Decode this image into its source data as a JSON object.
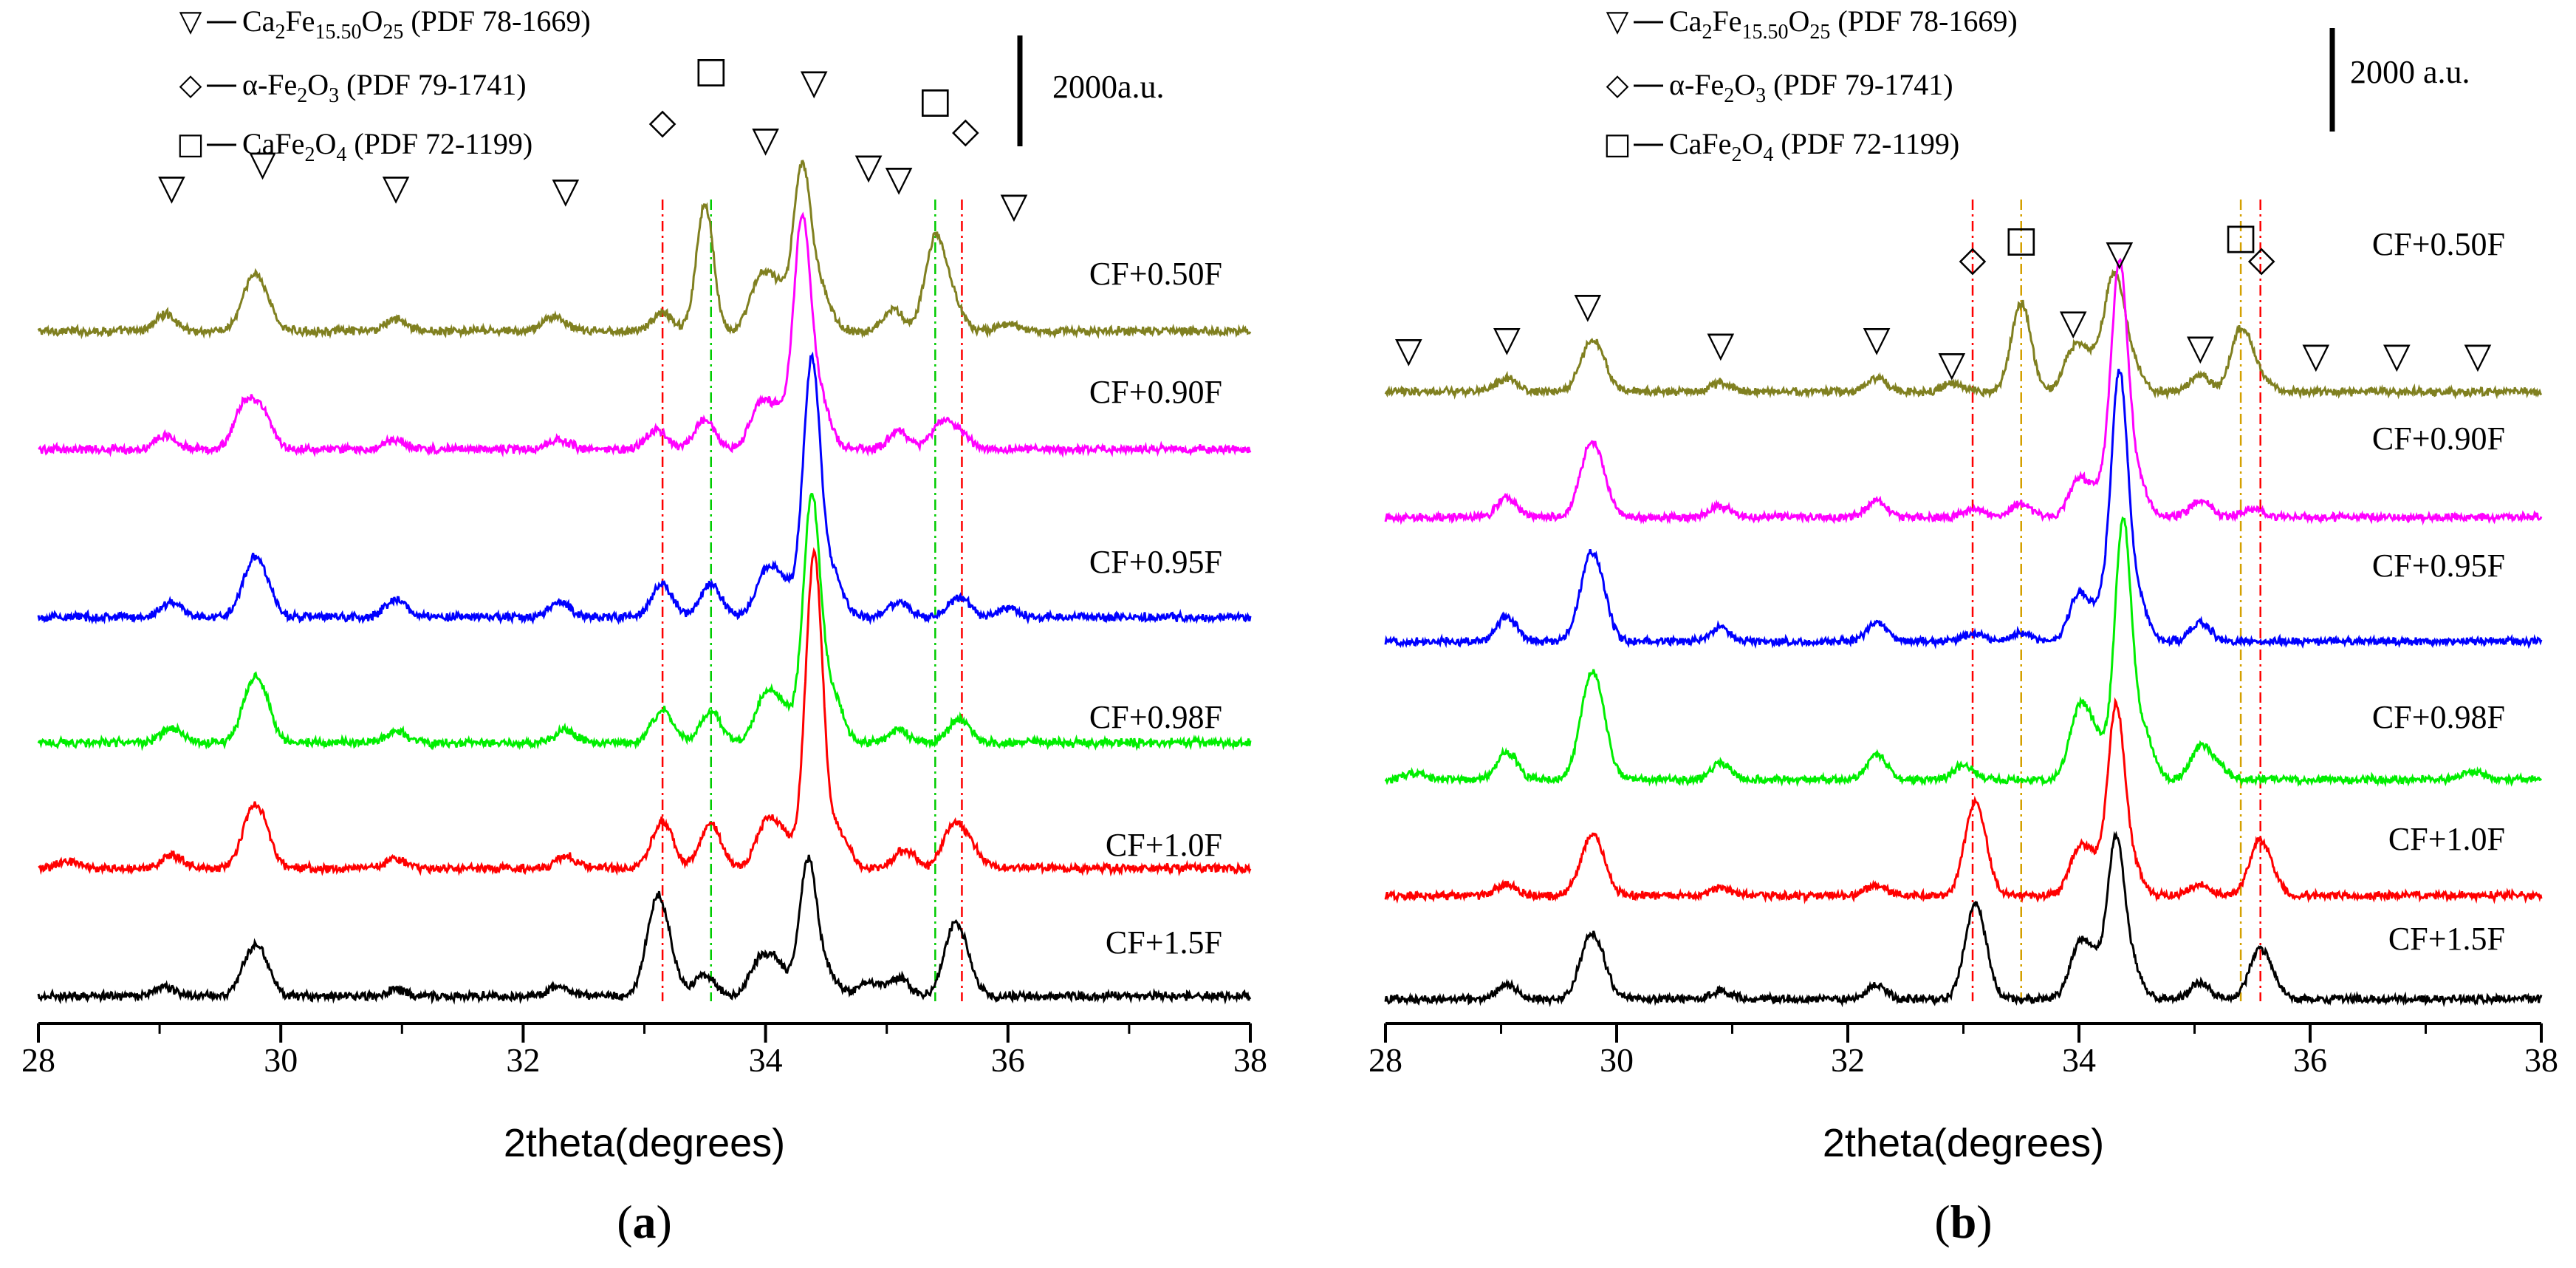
{
  "chart_data": [
    {
      "type": "line",
      "panel_label": "a",
      "xlabel": "2theta(degrees)",
      "ylabel": "",
      "xlim": [
        28,
        38
      ],
      "x_ticks": [
        28,
        30,
        32,
        34,
        36,
        38
      ],
      "scale_bar": "2000a.u.",
      "legend": [
        {
          "symbol": "▽",
          "base": "Ca",
          "parts": [
            [
              "Ca",
              ""
            ],
            [
              "2",
              "sub"
            ],
            [
              "Fe",
              ""
            ],
            [
              "15.50",
              "sub"
            ],
            [
              "O",
              ""
            ],
            [
              "25",
              "sub"
            ],
            [
              " (PDF 78-1669)",
              ""
            ]
          ]
        },
        {
          "symbol": "◇",
          "parts": [
            [
              "α-Fe",
              ""
            ],
            [
              "2",
              "sub"
            ],
            [
              "O",
              ""
            ],
            [
              "3",
              "sub"
            ],
            [
              " (PDF 79-1741)",
              ""
            ]
          ]
        },
        {
          "symbol": "□",
          "parts": [
            [
              "CaFe",
              ""
            ],
            [
              "2",
              "sub"
            ],
            [
              "O",
              ""
            ],
            [
              "4",
              "sub"
            ],
            [
              " (PDF 72-1199)",
              ""
            ]
          ]
        }
      ],
      "series": [
        {
          "name": "CF+0.50F",
          "color": "#808020",
          "peaks": [
            [
              29.05,
              280
            ],
            [
              29.75,
              620
            ],
            [
              29.85,
              500
            ],
            [
              30.95,
              200
            ],
            [
              32.25,
              250
            ],
            [
              33.15,
              300
            ],
            [
              33.5,
              2100
            ],
            [
              33.95,
              800
            ],
            [
              34.1,
              650
            ],
            [
              34.3,
              2600
            ],
            [
              34.45,
              700
            ],
            [
              35.05,
              350
            ],
            [
              35.4,
              1500
            ],
            [
              35.55,
              400
            ],
            [
              36.0,
              120
            ]
          ]
        },
        {
          "name": "CF+0.90F",
          "color": "#ff00ff",
          "peaks": [
            [
              29.05,
              220
            ],
            [
              29.7,
              700
            ],
            [
              29.85,
              550
            ],
            [
              30.95,
              150
            ],
            [
              32.3,
              150
            ],
            [
              33.1,
              330
            ],
            [
              33.5,
              500
            ],
            [
              33.95,
              650
            ],
            [
              34.1,
              550
            ],
            [
              34.3,
              3700
            ],
            [
              34.45,
              800
            ],
            [
              35.1,
              300
            ],
            [
              35.45,
              400
            ],
            [
              35.6,
              250
            ]
          ]
        },
        {
          "name": "CF+0.95F",
          "color": "#0000ff",
          "peaks": [
            [
              29.1,
              250
            ],
            [
              29.75,
              650
            ],
            [
              29.85,
              550
            ],
            [
              30.95,
              300
            ],
            [
              32.3,
              250
            ],
            [
              33.15,
              550
            ],
            [
              33.55,
              550
            ],
            [
              34.0,
              700
            ],
            [
              34.15,
              500
            ],
            [
              34.38,
              4200
            ],
            [
              34.55,
              700
            ],
            [
              35.1,
              250
            ],
            [
              35.6,
              330
            ],
            [
              36.0,
              150
            ]
          ]
        },
        {
          "name": "CF+0.98F",
          "color": "#00ee00",
          "peaks": [
            [
              29.1,
              230
            ],
            [
              29.75,
              700
            ],
            [
              29.85,
              600
            ],
            [
              30.95,
              200
            ],
            [
              32.35,
              200
            ],
            [
              33.15,
              550
            ],
            [
              33.55,
              520
            ],
            [
              34.0,
              750
            ],
            [
              34.15,
              500
            ],
            [
              34.38,
              4000
            ],
            [
              34.55,
              800
            ],
            [
              35.1,
              200
            ],
            [
              35.6,
              400
            ]
          ]
        },
        {
          "name": "CF+1.0F",
          "color": "#ff0000",
          "peaks": [
            [
              28.25,
              120
            ],
            [
              29.1,
              220
            ],
            [
              29.75,
              700
            ],
            [
              29.85,
              550
            ],
            [
              30.95,
              150
            ],
            [
              32.35,
              200
            ],
            [
              33.15,
              800
            ],
            [
              33.55,
              750
            ],
            [
              34.0,
              700
            ],
            [
              34.15,
              500
            ],
            [
              34.4,
              5200
            ],
            [
              34.6,
              600
            ],
            [
              35.15,
              300
            ],
            [
              35.55,
              700
            ],
            [
              35.7,
              300
            ]
          ]
        },
        {
          "name": "CF+1.5F",
          "color": "#000000",
          "peaks": [
            [
              29.05,
              150
            ],
            [
              29.75,
              550
            ],
            [
              29.85,
              450
            ],
            [
              30.95,
              100
            ],
            [
              32.3,
              150
            ],
            [
              33.1,
              1450
            ],
            [
              33.2,
              400
            ],
            [
              33.5,
              350
            ],
            [
              33.95,
              550
            ],
            [
              34.1,
              500
            ],
            [
              34.35,
              2200
            ],
            [
              34.5,
              400
            ],
            [
              34.85,
              250
            ],
            [
              35.1,
              300
            ],
            [
              35.55,
              1000
            ],
            [
              35.65,
              400
            ]
          ]
        }
      ],
      "markers": [
        {
          "symbol": "▽",
          "x": 29.1,
          "y": 2000
        },
        {
          "symbol": "▽",
          "x": 29.85,
          "y": 2400
        },
        {
          "symbol": "▽",
          "x": 30.95,
          "y": 2000
        },
        {
          "symbol": "▽",
          "x": 32.35,
          "y": 1950
        },
        {
          "symbol": "◇",
          "x": 33.15,
          "y": 3100
        },
        {
          "symbol": "□",
          "x": 33.55,
          "y": 3950
        },
        {
          "symbol": "▽",
          "x": 34.0,
          "y": 2800
        },
        {
          "symbol": "▽",
          "x": 34.4,
          "y": 3750
        },
        {
          "symbol": "▽",
          "x": 34.85,
          "y": 2350
        },
        {
          "symbol": "▽",
          "x": 35.1,
          "y": 2150
        },
        {
          "symbol": "□",
          "x": 35.4,
          "y": 3450
        },
        {
          "symbol": "◇",
          "x": 35.65,
          "y": 2950
        },
        {
          "symbol": "▽",
          "x": 36.05,
          "y": 1700
        }
      ],
      "ref_lines": [
        {
          "x": 33.15,
          "color": "#ff0000",
          "dash": "dashdot"
        },
        {
          "x": 33.55,
          "color": "#00cc00",
          "dash": "dashdot"
        },
        {
          "x": 35.4,
          "color": "#00cc00",
          "dash": "dashdot"
        },
        {
          "x": 35.62,
          "color": "#ff0000",
          "dash": "dashdot"
        }
      ]
    },
    {
      "type": "line",
      "panel_label": "b",
      "xlabel": "2theta(degrees)",
      "ylabel": "",
      "xlim": [
        28,
        38
      ],
      "x_ticks": [
        28,
        30,
        32,
        34,
        36,
        38
      ],
      "scale_bar": "2000 a.u.",
      "legend": [
        {
          "symbol": "▽",
          "parts": [
            [
              "Ca",
              ""
            ],
            [
              "2",
              "sub"
            ],
            [
              "Fe",
              ""
            ],
            [
              "15.50",
              "sub"
            ],
            [
              "O",
              ""
            ],
            [
              "25",
              "sub"
            ],
            [
              " (PDF 78-1669)",
              ""
            ]
          ]
        },
        {
          "symbol": "◇",
          "parts": [
            [
              "α-Fe",
              ""
            ],
            [
              "2",
              "sub"
            ],
            [
              "O",
              ""
            ],
            [
              "3",
              "sub"
            ],
            [
              " (PDF 79-1741)",
              ""
            ]
          ]
        },
        {
          "symbol": "□",
          "parts": [
            [
              "CaFe",
              ""
            ],
            [
              "2",
              "sub"
            ],
            [
              "O",
              ""
            ],
            [
              "4",
              "sub"
            ],
            [
              " (PDF 72-1199)",
              ""
            ]
          ]
        }
      ],
      "series": [
        {
          "name": "CF+0.50F",
          "color": "#808020",
          "peaks": [
            [
              29.05,
              250
            ],
            [
              29.75,
              600
            ],
            [
              29.85,
              500
            ],
            [
              30.9,
              150
            ],
            [
              32.25,
              250
            ],
            [
              32.9,
              150
            ],
            [
              33.5,
              1600
            ],
            [
              33.95,
              700
            ],
            [
              34.1,
              500
            ],
            [
              34.3,
              2000
            ],
            [
              34.45,
              500
            ],
            [
              35.05,
              300
            ],
            [
              35.4,
              1100
            ],
            [
              35.55,
              300
            ]
          ]
        },
        {
          "name": "CF+0.90F",
          "color": "#ff00ff",
          "peaks": [
            [
              29.05,
              350
            ],
            [
              29.75,
              900
            ],
            [
              29.85,
              700
            ],
            [
              30.9,
              200
            ],
            [
              32.25,
              300
            ],
            [
              33.1,
              150
            ],
            [
              33.5,
              250
            ],
            [
              34.0,
              700
            ],
            [
              34.2,
              500
            ],
            [
              34.35,
              4400
            ],
            [
              34.5,
              700
            ],
            [
              35.05,
              300
            ],
            [
              35.5,
              150
            ]
          ]
        },
        {
          "name": "CF+0.95F",
          "color": "#0000ff",
          "peaks": [
            [
              29.05,
              450
            ],
            [
              29.75,
              1100
            ],
            [
              29.85,
              800
            ],
            [
              30.9,
              250
            ],
            [
              32.25,
              350
            ],
            [
              33.1,
              150
            ],
            [
              33.5,
              150
            ],
            [
              34.0,
              850
            ],
            [
              34.2,
              600
            ],
            [
              34.35,
              4600
            ],
            [
              34.5,
              800
            ],
            [
              35.05,
              350
            ]
          ]
        },
        {
          "name": "CF+0.98F",
          "color": "#00ee00",
          "peaks": [
            [
              28.25,
              120
            ],
            [
              29.05,
              500
            ],
            [
              29.75,
              1300
            ],
            [
              29.85,
              1000
            ],
            [
              30.9,
              300
            ],
            [
              32.25,
              450
            ],
            [
              33.0,
              250
            ],
            [
              34.0,
              1200
            ],
            [
              34.15,
              700
            ],
            [
              34.38,
              4600
            ],
            [
              34.55,
              900
            ],
            [
              35.05,
              550
            ],
            [
              35.2,
              250
            ],
            [
              37.4,
              150
            ]
          ]
        },
        {
          "name": "CF+1.0F",
          "color": "#ff0000",
          "peaks": [
            [
              29.05,
              200
            ],
            [
              29.75,
              750
            ],
            [
              29.85,
              550
            ],
            [
              30.9,
              150
            ],
            [
              32.25,
              200
            ],
            [
              33.08,
              1100
            ],
            [
              33.15,
              700
            ],
            [
              34.0,
              800
            ],
            [
              34.15,
              500
            ],
            [
              34.32,
              3200
            ],
            [
              34.45,
              600
            ],
            [
              35.05,
              200
            ],
            [
              35.55,
              850
            ],
            [
              35.65,
              300
            ]
          ]
        },
        {
          "name": "CF+1.5F",
          "color": "#000000",
          "peaks": [
            [
              29.05,
              250
            ],
            [
              29.75,
              800
            ],
            [
              29.85,
              600
            ],
            [
              30.9,
              150
            ],
            [
              32.25,
              250
            ],
            [
              33.08,
              1150
            ],
            [
              33.15,
              700
            ],
            [
              34.0,
              900
            ],
            [
              34.15,
              600
            ],
            [
              34.32,
              2700
            ],
            [
              34.45,
              600
            ],
            [
              35.05,
              300
            ],
            [
              35.55,
              750
            ],
            [
              35.65,
              300
            ]
          ]
        }
      ],
      "markers": [
        {
          "symbol": "▽",
          "x": 28.2,
          "y": 800
        },
        {
          "symbol": "▽",
          "x": 29.05,
          "y": 1000
        },
        {
          "symbol": "▽",
          "x": 29.75,
          "y": 1600
        },
        {
          "symbol": "▽",
          "x": 30.9,
          "y": 900
        },
        {
          "symbol": "▽",
          "x": 32.25,
          "y": 1000
        },
        {
          "symbol": "▽",
          "x": 32.9,
          "y": 550
        },
        {
          "symbol": "◇",
          "x": 33.08,
          "y": 2450
        },
        {
          "symbol": "□",
          "x": 33.5,
          "y": 2800
        },
        {
          "symbol": "▽",
          "x": 33.95,
          "y": 1300
        },
        {
          "symbol": "▽",
          "x": 34.35,
          "y": 2550
        },
        {
          "symbol": "▽",
          "x": 35.05,
          "y": 850
        },
        {
          "symbol": "□",
          "x": 35.4,
          "y": 2850
        },
        {
          "symbol": "◇",
          "x": 35.58,
          "y": 2450
        },
        {
          "symbol": "▽",
          "x": 36.05,
          "y": 700
        },
        {
          "symbol": "▽",
          "x": 36.75,
          "y": 700
        },
        {
          "symbol": "▽",
          "x": 37.45,
          "y": 700
        }
      ],
      "ref_lines": [
        {
          "x": 33.08,
          "color": "#ff0000",
          "dash": "dashdot"
        },
        {
          "x": 33.5,
          "color": "#d4a000",
          "dash": "dashdot"
        },
        {
          "x": 35.4,
          "color": "#d4a000",
          "dash": "dashdot"
        },
        {
          "x": 35.57,
          "color": "#ff0000",
          "dash": "dashdot"
        }
      ]
    }
  ]
}
